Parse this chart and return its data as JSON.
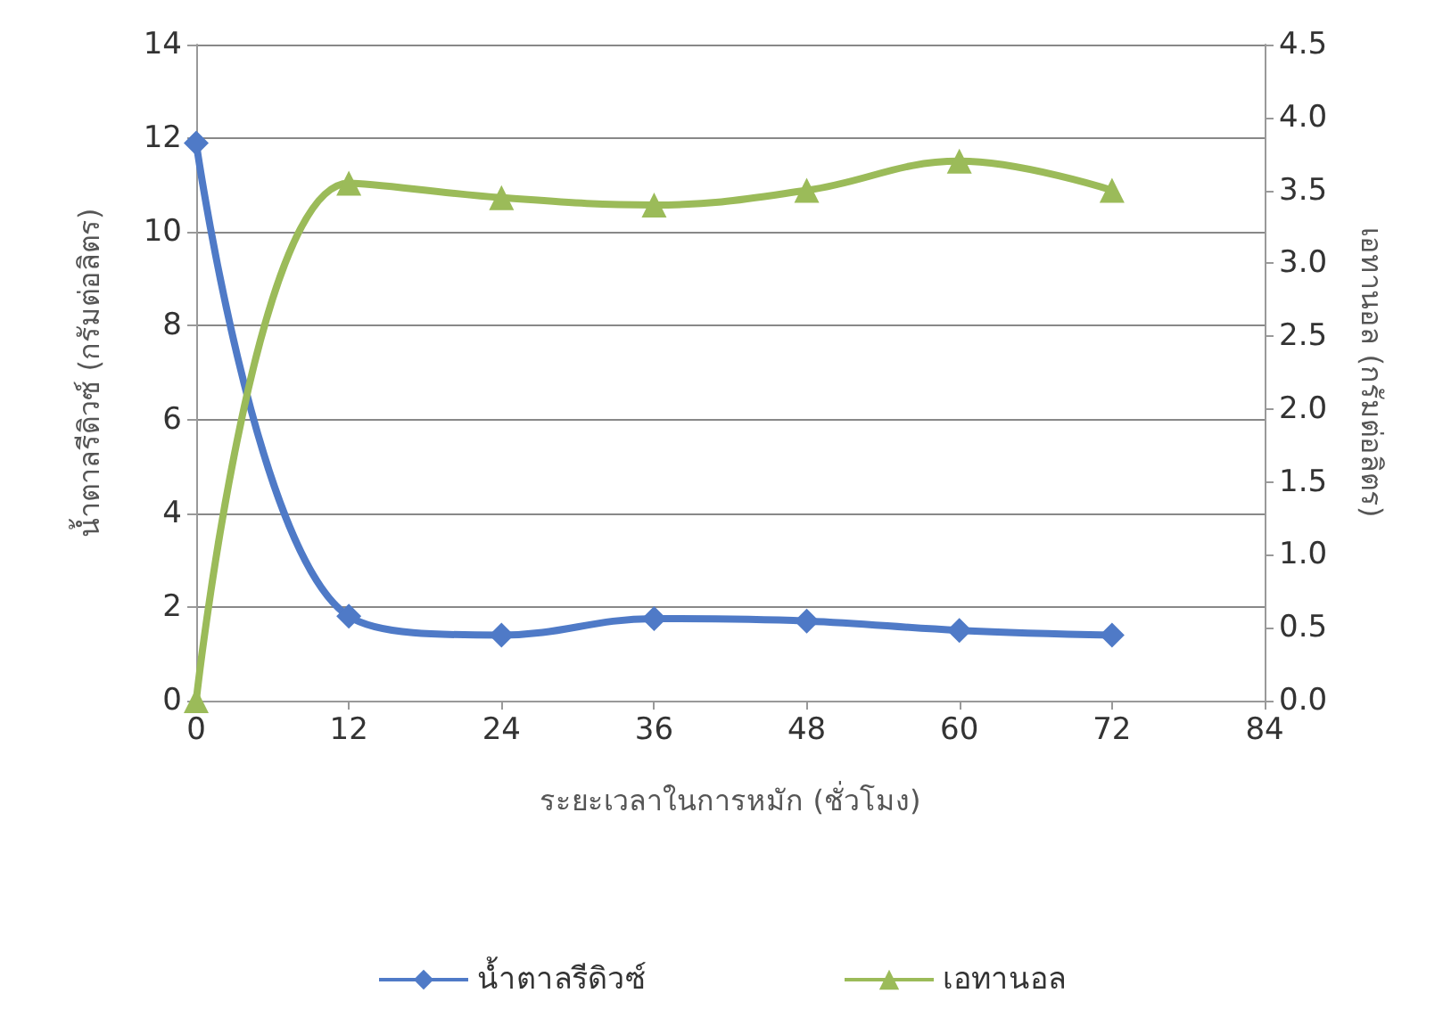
{
  "chart_data": {
    "type": "line",
    "xlabel": "ระยะเวลาในการหมัก (ชั่วโมง)",
    "ylabel": "น้ำตาลรีดิวซ์ (กรัมต่อลิตร)",
    "y2label": "เอทานอล (กรัมต่อลิตร)",
    "x": [
      0,
      12,
      24,
      36,
      48,
      60,
      72
    ],
    "series": [
      {
        "name": "น้ำตาลรีดิวซ์",
        "color": "#4f7ac7",
        "marker": "diamond",
        "values": [
          11.9,
          1.8,
          1.4,
          1.75,
          1.7,
          1.5,
          1.4
        ]
      },
      {
        "name": "เอทานอล",
        "color": "#9bbb59",
        "marker": "triangle",
        "axis": "y2",
        "values": [
          0.0,
          3.55,
          3.45,
          3.4,
          3.5,
          3.7,
          3.5
        ]
      }
    ],
    "xlim": [
      0,
      84
    ],
    "xticks": [
      0,
      12,
      24,
      36,
      48,
      60,
      72,
      84
    ],
    "ylim": [
      0,
      14
    ],
    "yticks": [
      0,
      2,
      4,
      6,
      8,
      10,
      12,
      14
    ],
    "y2lim": [
      0,
      4.5
    ],
    "y2ticks": [
      {
        "value": 0,
        "label": "0.0"
      },
      0.5,
      {
        "value": 1,
        "label": "1.0"
      },
      1.5,
      {
        "value": 2,
        "label": "2.0"
      },
      2.5,
      {
        "value": 3,
        "label": "3.0"
      },
      3.5,
      {
        "value": 4,
        "label": "4.0"
      },
      4.5
    ],
    "grid": "y",
    "legend": "bottom"
  }
}
